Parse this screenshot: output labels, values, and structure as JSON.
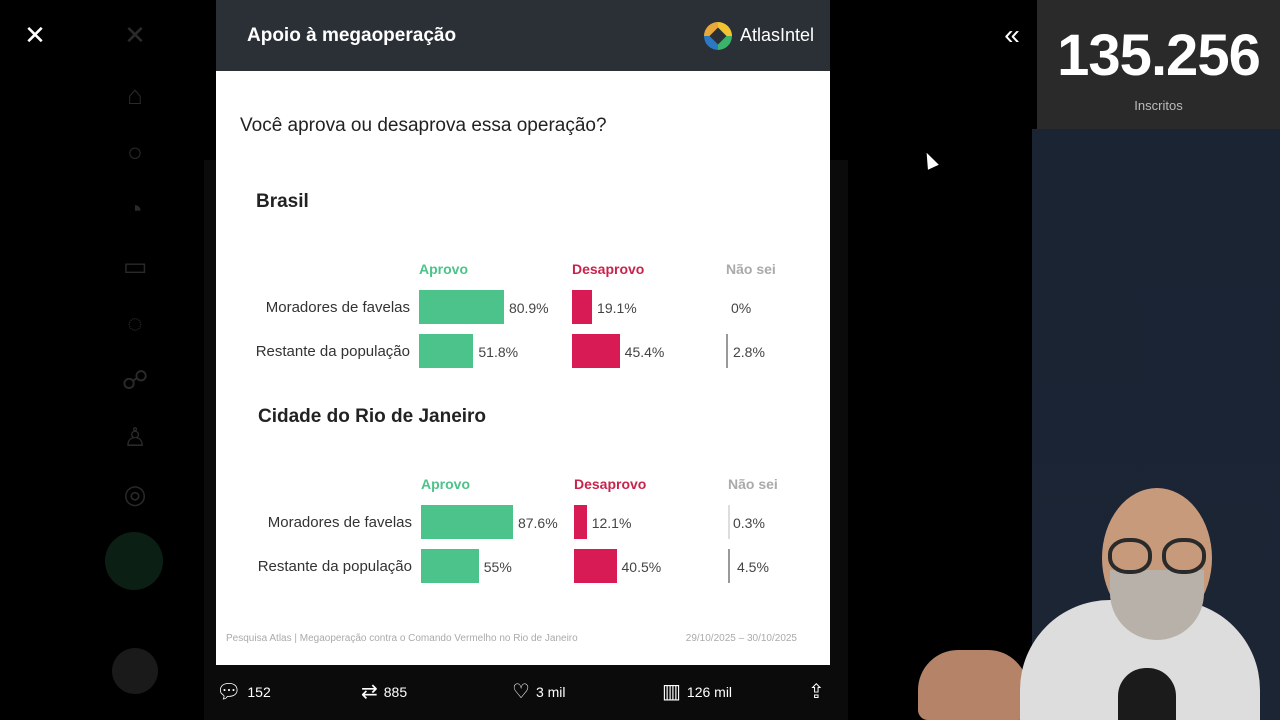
{
  "card": {
    "title": "Apoio à megaoperação",
    "brand": "AtlasIntel",
    "question": "Você aprova ou desaprova essa operação?",
    "columns": {
      "approve": "Aprovo",
      "disapprove": "Desaprovo",
      "dontknow": "Não sei"
    },
    "sections": [
      {
        "title": "Brasil",
        "rows": [
          {
            "label": "Moradores de favelas",
            "approve": 80.9,
            "approve_text": "80.9%",
            "disapprove": 19.1,
            "disapprove_text": "19.1%",
            "dontknow": 0,
            "dontknow_text": "0%"
          },
          {
            "label": "Restante da população",
            "approve": 51.8,
            "approve_text": "51.8%",
            "disapprove": 45.4,
            "disapprove_text": "45.4%",
            "dontknow": 2.8,
            "dontknow_text": "2.8%"
          }
        ]
      },
      {
        "title": "Cidade do Rio de Janeiro",
        "rows": [
          {
            "label": "Moradores de favelas",
            "approve": 87.6,
            "approve_text": "87.6%",
            "disapprove": 12.1,
            "disapprove_text": "12.1%",
            "dontknow": 0.3,
            "dontknow_text": "0.3%"
          },
          {
            "label": "Restante da população",
            "approve": 55,
            "approve_text": "55%",
            "disapprove": 40.5,
            "disapprove_text": "40.5%",
            "dontknow": 4.5,
            "dontknow_text": "4.5%"
          }
        ]
      }
    ],
    "footer_source": "Pesquisa Atlas | Megaoperação contra o Comando Vermelho no Rio de Janeiro",
    "footer_date": "29/10/2025 – 30/10/2025"
  },
  "actions": {
    "replies": "152",
    "reposts": "885",
    "likes": "3 mil",
    "views": "126 mil"
  },
  "subscribers": {
    "count": "135.256",
    "label": "Inscritos"
  },
  "colors": {
    "approve": "#4cc38a",
    "disapprove": "#d81b55",
    "dontknow": "#999999",
    "header": "#2b2f36"
  },
  "icons": {
    "close": "close-icon",
    "collapse": "double-chevron-left-icon",
    "reply": "reply-icon",
    "repost": "repost-icon",
    "like": "heart-icon",
    "views": "views-icon",
    "share": "share-icon"
  }
}
